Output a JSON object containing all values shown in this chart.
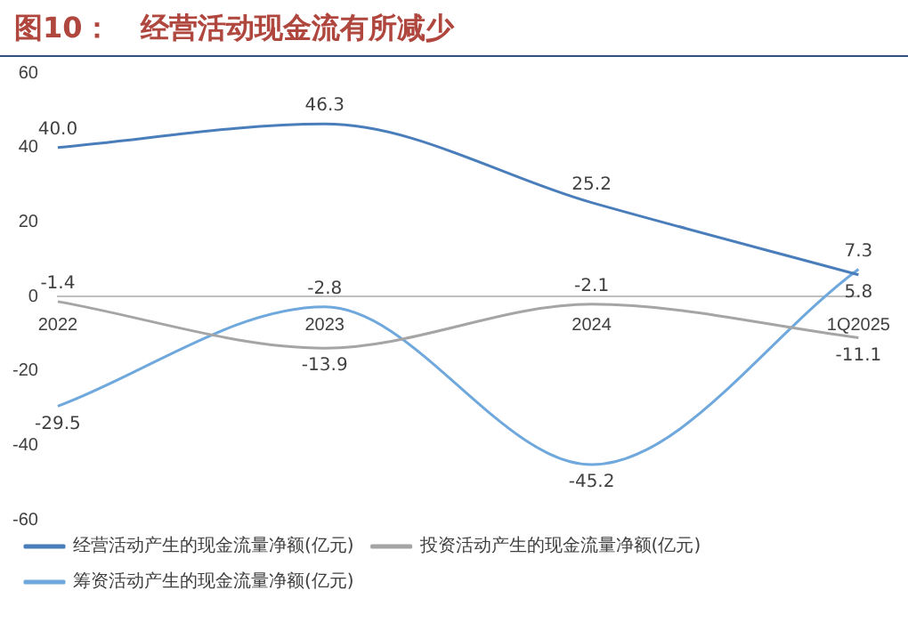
{
  "chart_data": {
    "type": "line",
    "title": "图10：   经营活动现金流有所减少",
    "categories": [
      "2022",
      "2023",
      "2024",
      "1Q2025"
    ],
    "series": [
      {
        "name": "经营活动产生的现金流量净额(亿元)",
        "color": "#4a7ebb",
        "values": [
          40.0,
          46.3,
          25.2,
          5.8
        ],
        "value_labels": [
          "40.0",
          "46.3",
          "25.2",
          "5.8"
        ]
      },
      {
        "name": "投资活动产生的现金流量净额(亿元)",
        "color": "#a5a5a5",
        "values": [
          -1.4,
          -13.9,
          -2.1,
          -11.1
        ],
        "value_labels": [
          "-1.4",
          "-13.9",
          "-2.1",
          "-11.1"
        ]
      },
      {
        "name": "筹资活动产生的现金流量净额(亿元)",
        "color": "#6fa8dc",
        "values": [
          -29.5,
          -2.8,
          -45.2,
          7.3
        ],
        "value_labels": [
          "-29.5",
          "-2.8",
          "-45.2",
          "7.3"
        ]
      }
    ],
    "ylim": [
      -60,
      60
    ],
    "yticks": [
      -60,
      -40,
      -20,
      0,
      20,
      40,
      60
    ],
    "grid": false,
    "legend": "bottom",
    "marker": "none",
    "line_style": "solid"
  }
}
